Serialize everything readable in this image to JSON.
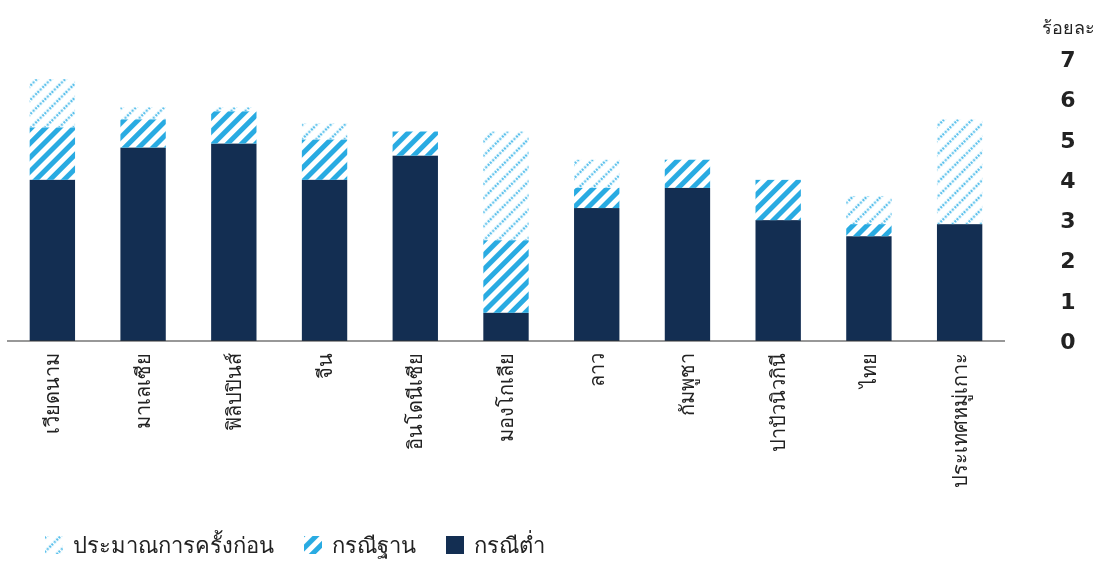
{
  "chart_data": {
    "type": "bar",
    "stacked": true,
    "ylabel": "ร้อยละ",
    "categories": [
      "เวียดนาม",
      "มาเลเซีย",
      "ฟิลิปปินส์",
      "จีน",
      "อินโดนีเซีย",
      "มองโกเลีย",
      "ลาว",
      "กัมพูชา",
      "ปาปัวนิวกินี",
      "ไทย",
      "ประเทศหมู่เกาะ"
    ],
    "series": [
      {
        "name": "กรณีต่ำ",
        "color": "#132e52",
        "values": [
          4.0,
          4.8,
          4.9,
          4.0,
          4.6,
          0.7,
          3.3,
          3.8,
          3.0,
          2.6,
          2.9
        ]
      },
      {
        "name": "กรณีฐาน",
        "color": "#29abe2",
        "values": [
          1.3,
          0.7,
          0.8,
          1.0,
          0.6,
          1.8,
          0.5,
          0.7,
          1.0,
          0.3,
          null
        ]
      },
      {
        "name": "ประมาณการครั้งก่อน",
        "color": "#5cc1ec",
        "values": [
          1.2,
          0.3,
          0.1,
          0.4,
          null,
          2.7,
          0.7,
          null,
          null,
          0.7,
          2.6
        ]
      }
    ],
    "ylim": [
      0,
      7
    ],
    "yticks": [
      0,
      1,
      2,
      3,
      4,
      5,
      6,
      7
    ],
    "grid": false,
    "legend": "bottom"
  }
}
